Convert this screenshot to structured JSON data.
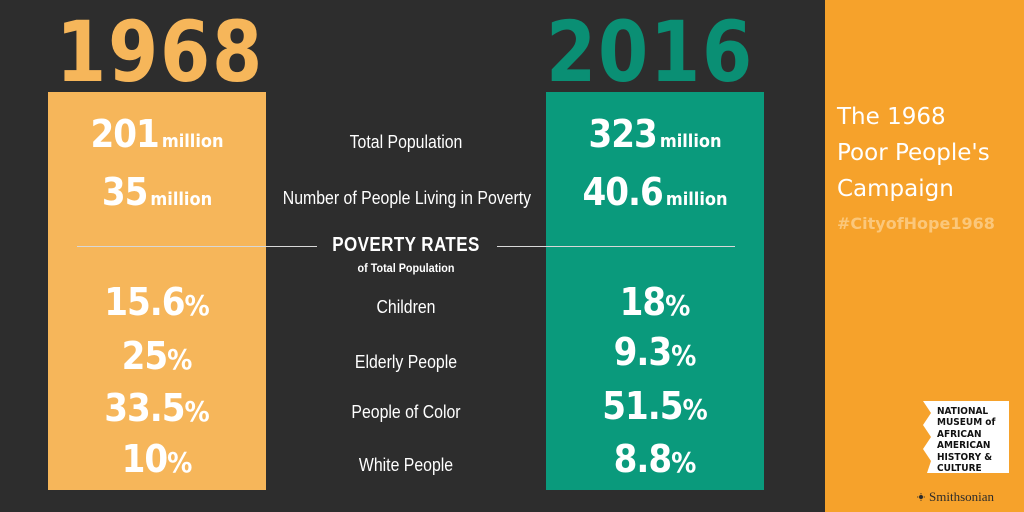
{
  "years": {
    "left": "1968",
    "right": "2016"
  },
  "rows": [
    {
      "label": "Total Population",
      "left_num": "201",
      "left_unit": "million",
      "right_num": "323",
      "right_unit": "million"
    },
    {
      "label": "Number of People Living in Poverty",
      "left_num": "35",
      "left_unit": "million",
      "right_num": "40.6",
      "right_unit": "million"
    }
  ],
  "poverty_rates": {
    "title": "POVERTY RATES",
    "subtitle": "of Total Population",
    "rows": [
      {
        "label": "Children",
        "left_num": "15.6",
        "right_num": "18"
      },
      {
        "label": "Elderly People",
        "left_num": "25",
        "right_num": "9.3"
      },
      {
        "label": "People of Color",
        "left_num": "33.5",
        "right_num": "51.5"
      },
      {
        "label": "White People",
        "left_num": "10",
        "right_num": "8.8"
      }
    ],
    "percent_sign": "%"
  },
  "sidebar": {
    "title_line1": "The 1968",
    "title_line2": "Poor People's",
    "title_line3": "Campaign",
    "hashtag": "#CityofHope1968",
    "museum_lines": [
      "NATIONAL",
      "MUSEUM of",
      "AFRICAN",
      "AMERICAN",
      "HISTORY &",
      "CULTURE"
    ],
    "smithsonian": "Smithsonian"
  },
  "colors": {
    "left": "#f6b65a",
    "right": "#0a9a7c",
    "background": "#2d2d2d",
    "sidebar": "#f6a22b"
  }
}
